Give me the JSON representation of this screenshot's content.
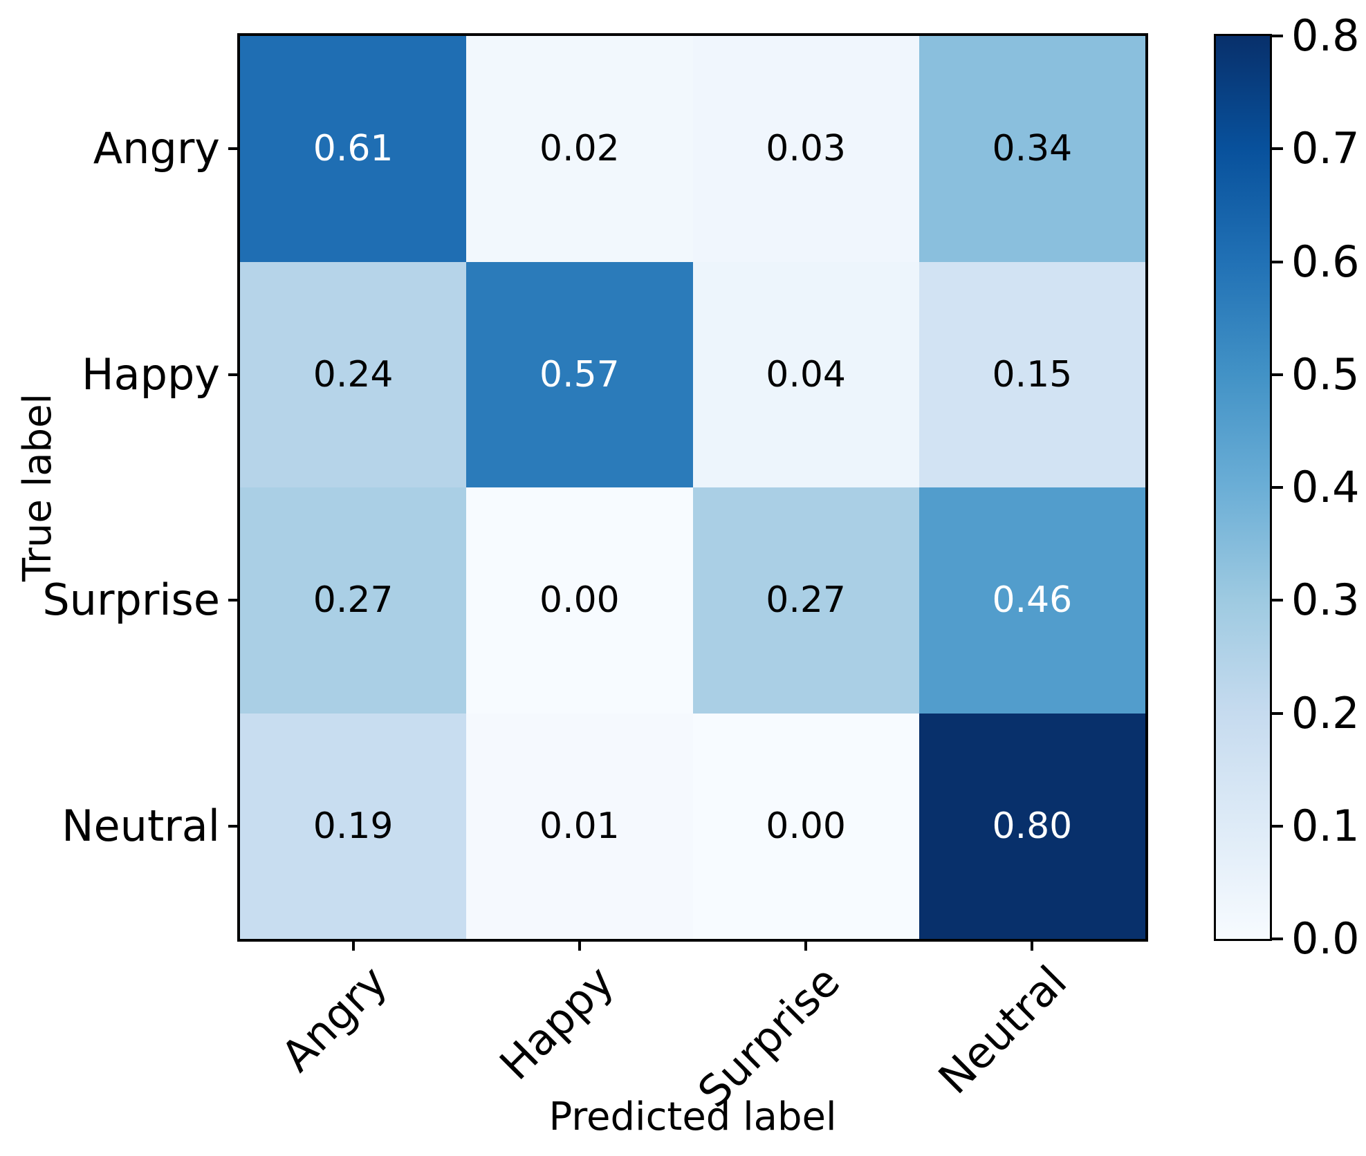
{
  "chart_data": {
    "type": "heatmap",
    "title": "",
    "xlabel": "Predicted label",
    "ylabel": "True label",
    "x_categories": [
      "Angry",
      "Happy",
      "Surprise",
      "Neutral"
    ],
    "y_categories": [
      "Angry",
      "Happy",
      "Surprise",
      "Neutral"
    ],
    "matrix": [
      [
        0.61,
        0.02,
        0.03,
        0.34
      ],
      [
        0.24,
        0.57,
        0.04,
        0.15
      ],
      [
        0.27,
        0.0,
        0.27,
        0.46
      ],
      [
        0.19,
        0.01,
        0.0,
        0.8
      ]
    ],
    "cell_labels": [
      [
        "0.61",
        "0.02",
        "0.03",
        "0.34"
      ],
      [
        "0.24",
        "0.57",
        "0.04",
        "0.15"
      ],
      [
        "0.27",
        "0.00",
        "0.27",
        "0.46"
      ],
      [
        "0.19",
        "0.01",
        "0.00",
        "0.80"
      ]
    ],
    "colormap": "Blues",
    "vmin": 0.0,
    "vmax": 0.8,
    "grid": false,
    "x_tick_rotation_deg": 45,
    "colorbar": {
      "position": "right",
      "ticks": [
        0.0,
        0.1,
        0.2,
        0.3,
        0.4,
        0.5,
        0.6,
        0.7,
        0.8
      ],
      "tick_labels": [
        "0.0",
        "0.1",
        "0.2",
        "0.3",
        "0.4",
        "0.5",
        "0.6",
        "0.7",
        "0.8"
      ]
    }
  },
  "colors": {
    "background": "#ffffff",
    "axis": "#000000",
    "tick_text": "#000000",
    "cell_text_dark": "#000000",
    "cell_text_light": "#ffffff",
    "colormap_stops": [
      "#f7fbff",
      "#deebf7",
      "#c6dbef",
      "#9ecae1",
      "#6baed6",
      "#4292c6",
      "#2171b5",
      "#08519c",
      "#08306b"
    ]
  }
}
